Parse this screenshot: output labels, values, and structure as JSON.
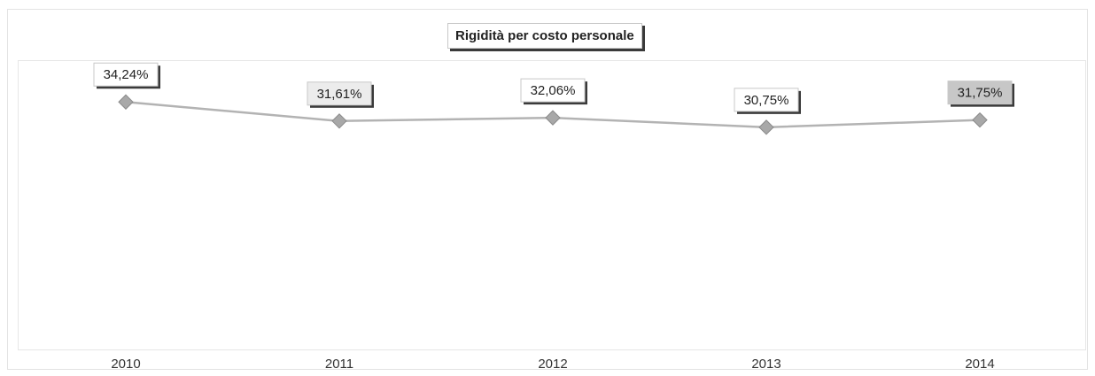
{
  "chart_data": {
    "type": "line",
    "title": "Rigidità per costo personale",
    "categories": [
      "2010",
      "2011",
      "2012",
      "2013",
      "2014"
    ],
    "values": [
      34.24,
      31.61,
      32.06,
      30.75,
      31.75
    ],
    "data_labels": [
      "34,24%",
      "31,61%",
      "32,06%",
      "30,75%",
      "31,75%"
    ],
    "xlabel": "",
    "ylabel": "",
    "ylim": [
      0,
      40
    ],
    "grid": false,
    "legend": "none",
    "colors": {
      "line": "#b3b3b3",
      "marker": "#a8a8a8",
      "label_bg": [
        "#ffffff",
        "#ececec",
        "#ffffff",
        "#ffffff",
        "#c7c7c7"
      ]
    }
  }
}
